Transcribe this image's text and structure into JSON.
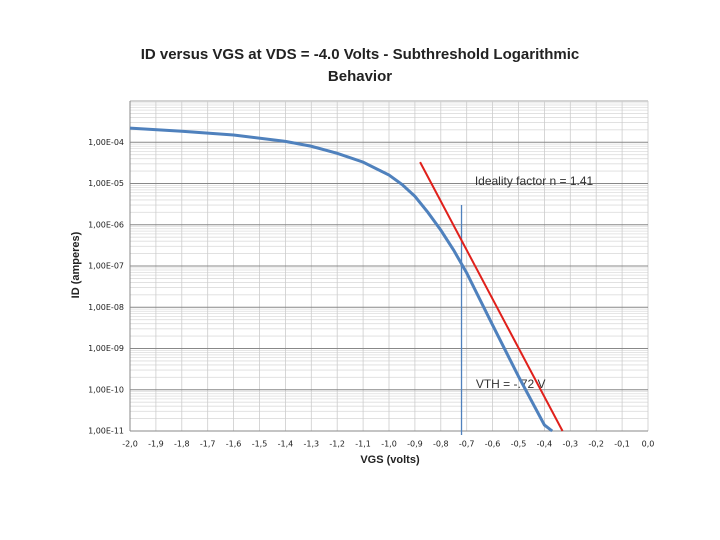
{
  "chart_data": {
    "type": "line",
    "title": "ID versus VGS at VDS = -4.0 Volts - Subthreshold Logarithmic Behavior",
    "x_label": "VGS (volts)",
    "y_label": "ID (amperes)",
    "log_y": true,
    "grid": true,
    "minor_grid": true,
    "xlim": [
      -2.0,
      0.0
    ],
    "ylim": [
      1e-11,
      0.001
    ],
    "xticks": [
      {
        "value": -2.0,
        "label": "-2,0"
      },
      {
        "value": -1.9,
        "label": "-1,9"
      },
      {
        "value": -1.8,
        "label": "-1,8"
      },
      {
        "value": -1.7,
        "label": "-1,7"
      },
      {
        "value": -1.6,
        "label": "-1,6"
      },
      {
        "value": -1.5,
        "label": "-1,5"
      },
      {
        "value": -1.4,
        "label": "-1,4"
      },
      {
        "value": -1.3,
        "label": "-1,3"
      },
      {
        "value": -1.2,
        "label": "-1,2"
      },
      {
        "value": -1.1,
        "label": "-1,1"
      },
      {
        "value": -1.0,
        "label": "-1,0"
      },
      {
        "value": -0.9,
        "label": "-0,9"
      },
      {
        "value": -0.8,
        "label": "-0,8"
      },
      {
        "value": -0.7,
        "label": "-0,7"
      },
      {
        "value": -0.6,
        "label": "-0,6"
      },
      {
        "value": -0.5,
        "label": "-0,5"
      },
      {
        "value": -0.4,
        "label": "-0,4"
      },
      {
        "value": -0.3,
        "label": "-0,3"
      },
      {
        "value": -0.2,
        "label": "-0,2"
      },
      {
        "value": -0.1,
        "label": "-0,1"
      },
      {
        "value": 0.0,
        "label": "0,0"
      }
    ],
    "yticks": [
      {
        "value": 0.0001,
        "label": "1,00E-04"
      },
      {
        "value": 1e-05,
        "label": "1,00E-05"
      },
      {
        "value": 1e-06,
        "label": "1,00E-06"
      },
      {
        "value": 1e-07,
        "label": "1,00E-07"
      },
      {
        "value": 1e-08,
        "label": "1,00E-08"
      },
      {
        "value": 1e-09,
        "label": "1,00E-09"
      },
      {
        "value": 1e-10,
        "label": "1,00E-10"
      },
      {
        "value": 1e-11,
        "label": "1,00E-11"
      }
    ],
    "series": [
      {
        "color": "#4f81bd",
        "x": [
          -2.0,
          -1.8,
          -1.6,
          -1.4,
          -1.3,
          -1.2,
          -1.1,
          -1.0,
          -0.95,
          -0.9,
          -0.85,
          -0.8,
          -0.75,
          -0.7,
          -0.6,
          -0.5,
          -0.4,
          -0.37
        ],
        "values": [
          0.00022,
          0.000185,
          0.00015,
          0.000105,
          8e-05,
          5.4e-05,
          3.3e-05,
          1.6e-05,
          9.5e-06,
          4.9e-06,
          2e-06,
          7.4e-07,
          2.4e-07,
          6.8e-08,
          3.7e-09,
          2.1e-10,
          1.4e-11,
          1e-11
        ]
      },
      {
        "color": "#e0201b",
        "x": [
          -0.88,
          -0.33
        ],
        "values": [
          3.3e-05,
          1e-11
        ]
      }
    ],
    "annotations": [
      {
        "text": "Ideality factor n = 1.41",
        "x": -0.44,
        "y": 1.1e-05
      }
    ],
    "vline": {
      "x": -0.72,
      "label": "VTH = -.72 V",
      "color": "#4f81bd"
    }
  }
}
